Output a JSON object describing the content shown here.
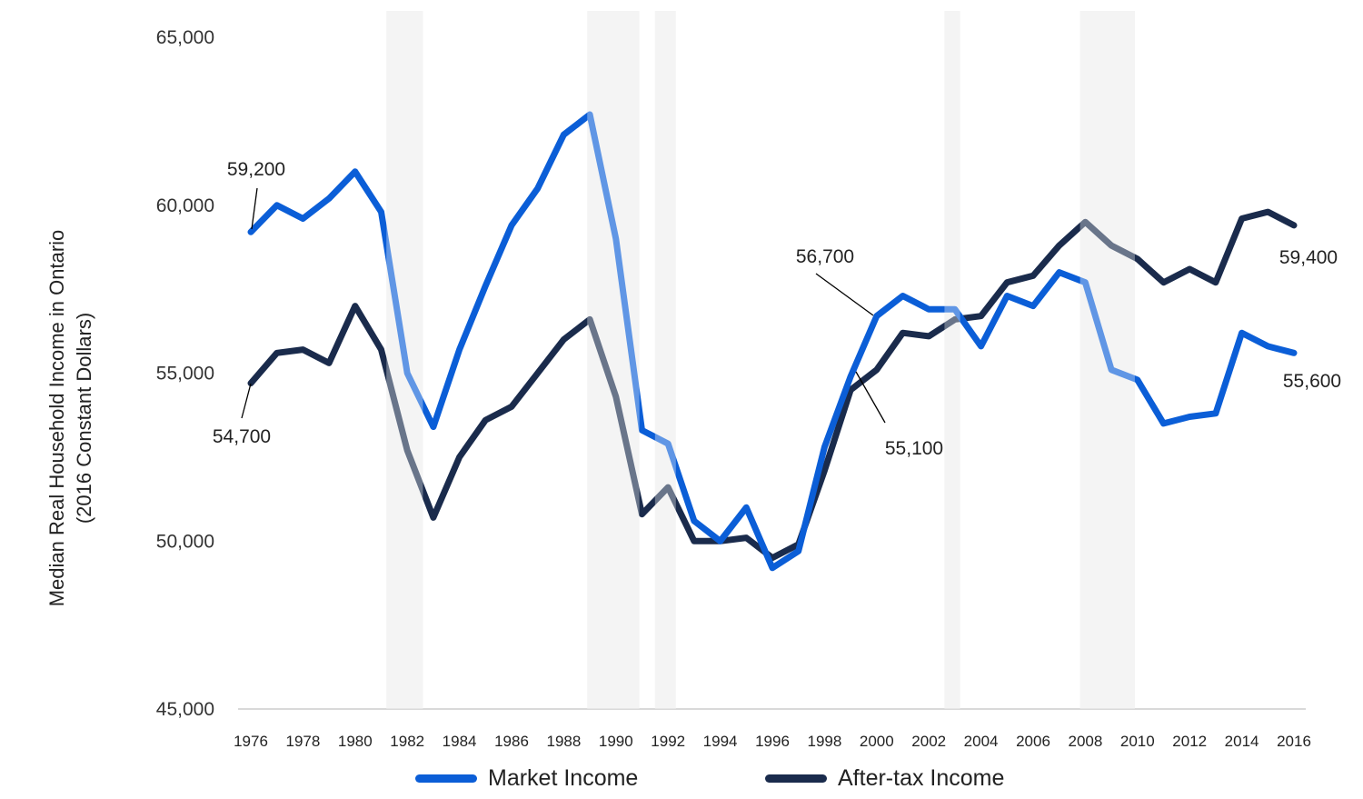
{
  "chart_data": {
    "type": "line",
    "title": "",
    "xlabel": "",
    "ylabel": "Median Real Household Income in Ontario (2016 Constant Dollars)",
    "ylabel_lines": [
      "Median Real Household Income in Ontario",
      "(2016 Constant Dollars)"
    ],
    "ylim": [
      45000,
      65000
    ],
    "yticks": [
      45000,
      50000,
      55000,
      60000,
      65000
    ],
    "ytick_labels": [
      "45,000",
      "50,000",
      "55,000",
      "60,000",
      "65,000"
    ],
    "xlim": [
      1976,
      2016
    ],
    "xtick_labels": [
      "1976",
      "1978",
      "1980",
      "1982",
      "1984",
      "1986",
      "1988",
      "1990",
      "1992",
      "1994",
      "1996",
      "1998",
      "2000",
      "2002",
      "2004",
      "2006",
      "2008",
      "2010",
      "2012",
      "2014",
      "2016"
    ],
    "grid": false,
    "legend_position": "bottom",
    "x": [
      1976,
      1977,
      1978,
      1979,
      1980,
      1981,
      1982,
      1983,
      1984,
      1985,
      1986,
      1987,
      1988,
      1989,
      1990,
      1991,
      1992,
      1993,
      1994,
      1995,
      1996,
      1997,
      1998,
      1999,
      2000,
      2001,
      2002,
      2003,
      2004,
      2005,
      2006,
      2007,
      2008,
      2009,
      2010,
      2011,
      2012,
      2013,
      2014,
      2015,
      2016
    ],
    "series": [
      {
        "name": "Market Income",
        "color": "#0b5ed7",
        "values": [
          59200,
          60000,
          59600,
          60200,
          61000,
          59800,
          55000,
          53400,
          55700,
          57600,
          59400,
          60500,
          62100,
          62700,
          59000,
          53300,
          52900,
          50600,
          50000,
          51000,
          49200,
          49700,
          52800,
          54900,
          56700,
          57300,
          56900,
          56900,
          55800,
          57300,
          57000,
          58000,
          57700,
          55100,
          54800,
          53500,
          53700,
          53800,
          56200,
          55800,
          55600
        ]
      },
      {
        "name": "After-tax Income",
        "color": "#1a2b4c",
        "values": [
          54700,
          55600,
          55700,
          55300,
          57000,
          55700,
          52700,
          50700,
          52500,
          53600,
          54000,
          55000,
          56000,
          56600,
          54300,
          50800,
          51600,
          50000,
          50000,
          50100,
          49500,
          49900,
          52100,
          54500,
          55100,
          56200,
          56100,
          56600,
          56700,
          57700,
          57900,
          58800,
          59500,
          58800,
          58400,
          57700,
          58100,
          57700,
          59600,
          59800,
          59400
        ]
      }
    ],
    "recession_shading": [
      {
        "start": 1981.2,
        "end": 1982.6
      },
      {
        "start": 1988.9,
        "end": 1990.9
      },
      {
        "start": 1991.5,
        "end": 1992.3
      },
      {
        "start": 2002.6,
        "end": 2003.2
      },
      {
        "start": 2007.8,
        "end": 2009.9
      }
    ],
    "annotations": [
      {
        "label": "59,200",
        "series": "Market Income",
        "year": 1976
      },
      {
        "label": "54,700",
        "series": "After-tax Income",
        "year": 1976
      },
      {
        "label": "56,700",
        "series": "Market Income",
        "year": 2000
      },
      {
        "label": "55,100",
        "series": "After-tax Income",
        "year": 2000
      },
      {
        "label": "59,400",
        "series": "After-tax Income",
        "year": 2016
      },
      {
        "label": "55,600",
        "series": "Market Income",
        "year": 2016
      }
    ]
  },
  "legend": {
    "items": [
      {
        "label": "Market Income",
        "color": "#0b5ed7"
      },
      {
        "label": "After-tax Income",
        "color": "#1a2b4c"
      }
    ]
  }
}
